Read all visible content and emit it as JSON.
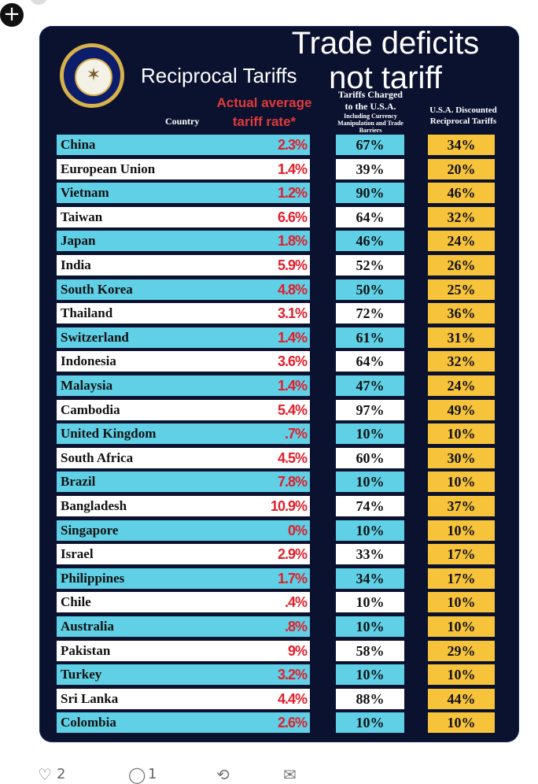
{
  "topbar": {
    "add_icon": "plus-icon",
    "add_glyph": "+"
  },
  "overlay_title": "Trade deficits not tariff",
  "card": {
    "title": "Reciprocal Tariffs",
    "seal_icon": "presidential-seal-icon",
    "headers": {
      "country": "Country",
      "actual": "Actual average tariff rate*",
      "tariffs_charged": "Tariffs Charged to the U.S.A.",
      "tariffs_charged_note": "Including Currency Manipulation and Trade Barriers",
      "discounted": "U.S.A. Discounted Reciprocal Tariffs"
    },
    "colors": {
      "background": "#0b1230",
      "cyan_row": "#5fd0e6",
      "white_row": "#ffffff",
      "recip": "#f6c33a",
      "actual_text": "#e01f2b"
    },
    "rows": [
      {
        "country": "China",
        "actual": "2.3%",
        "charged": "67%",
        "recip": "34%"
      },
      {
        "country": "European Union",
        "actual": "1.4%",
        "charged": "39%",
        "recip": "20%"
      },
      {
        "country": "Vietnam",
        "actual": "1.2%",
        "charged": "90%",
        "recip": "46%"
      },
      {
        "country": "Taiwan",
        "actual": "6.6%",
        "charged": "64%",
        "recip": "32%"
      },
      {
        "country": "Japan",
        "actual": "1.8%",
        "charged": "46%",
        "recip": "24%"
      },
      {
        "country": "India",
        "actual": "5.9%",
        "charged": "52%",
        "recip": "26%"
      },
      {
        "country": "South Korea",
        "actual": "4.8%",
        "charged": "50%",
        "recip": "25%"
      },
      {
        "country": "Thailand",
        "actual": "3.1%",
        "charged": "72%",
        "recip": "36%"
      },
      {
        "country": "Switzerland",
        "actual": "1.4%",
        "charged": "61%",
        "recip": "31%"
      },
      {
        "country": "Indonesia",
        "actual": "3.6%",
        "charged": "64%",
        "recip": "32%"
      },
      {
        "country": "Malaysia",
        "actual": "1.4%",
        "charged": "47%",
        "recip": "24%"
      },
      {
        "country": "Cambodia",
        "actual": "5.4%",
        "charged": "97%",
        "recip": "49%"
      },
      {
        "country": "United Kingdom",
        "actual": ".7%",
        "charged": "10%",
        "recip": "10%"
      },
      {
        "country": "South Africa",
        "actual": "4.5%",
        "charged": "60%",
        "recip": "30%"
      },
      {
        "country": "Brazil",
        "actual": "7.8%",
        "charged": "10%",
        "recip": "10%"
      },
      {
        "country": "Bangladesh",
        "actual": "10.9%",
        "charged": "74%",
        "recip": "37%"
      },
      {
        "country": "Singapore",
        "actual": "0%",
        "charged": "10%",
        "recip": "10%"
      },
      {
        "country": "Israel",
        "actual": "2.9%",
        "charged": "33%",
        "recip": "17%"
      },
      {
        "country": "Philippines",
        "actual": "1.7%",
        "charged": "34%",
        "recip": "17%"
      },
      {
        "country": "Chile",
        "actual": ".4%",
        "charged": "10%",
        "recip": "10%"
      },
      {
        "country": "Australia",
        "actual": ".8%",
        "charged": "10%",
        "recip": "10%"
      },
      {
        "country": "Pakistan",
        "actual": "9%",
        "charged": "58%",
        "recip": "29%"
      },
      {
        "country": "Turkey",
        "actual": "3.2%",
        "charged": "10%",
        "recip": "10%"
      },
      {
        "country": "Sri Lanka",
        "actual": "4.4%",
        "charged": "88%",
        "recip": "44%"
      },
      {
        "country": "Colombia",
        "actual": "2.6%",
        "charged": "10%",
        "recip": "10%"
      }
    ]
  },
  "footer": {
    "icons": [
      "like-icon",
      "reply-icon",
      "repost-icon",
      "share-icon"
    ],
    "like_count": "2",
    "reply_count": "1"
  }
}
